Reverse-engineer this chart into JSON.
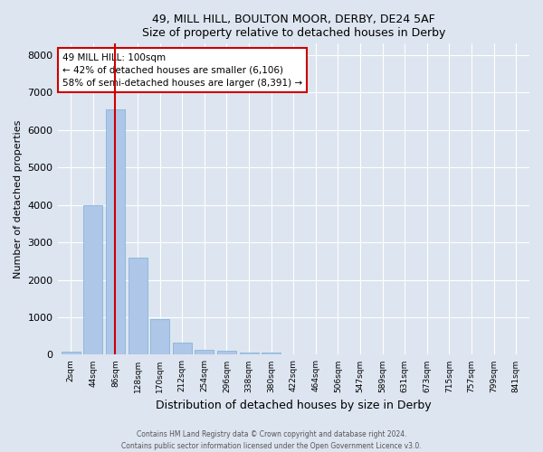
{
  "title1": "49, MILL HILL, BOULTON MOOR, DERBY, DE24 5AF",
  "title2": "Size of property relative to detached houses in Derby",
  "xlabel": "Distribution of detached houses by size in Derby",
  "ylabel": "Number of detached properties",
  "categories": [
    "2sqm",
    "44sqm",
    "86sqm",
    "128sqm",
    "170sqm",
    "212sqm",
    "254sqm",
    "296sqm",
    "338sqm",
    "380sqm",
    "422sqm",
    "464sqm",
    "506sqm",
    "547sqm",
    "589sqm",
    "631sqm",
    "673sqm",
    "715sqm",
    "757sqm",
    "799sqm",
    "841sqm"
  ],
  "values": [
    75,
    4000,
    6550,
    2600,
    950,
    320,
    135,
    110,
    70,
    70,
    0,
    0,
    0,
    0,
    0,
    0,
    0,
    0,
    0,
    0,
    0
  ],
  "bar_color": "#aec6e8",
  "bar_edge_color": "#7aadd4",
  "vline_x_index": 2,
  "vline_color": "#cc0000",
  "annotation_text": "49 MILL HILL: 100sqm\n← 42% of detached houses are smaller (6,106)\n58% of semi-detached houses are larger (8,391) →",
  "annotation_box_facecolor": "#ffffff",
  "annotation_box_edgecolor": "#cc0000",
  "ylim": [
    0,
    8300
  ],
  "yticks": [
    0,
    1000,
    2000,
    3000,
    4000,
    5000,
    6000,
    7000,
    8000
  ],
  "bg_color": "#dde5f0",
  "plot_bg_color": "#dde5f0",
  "grid_color": "#ffffff",
  "footer1": "Contains HM Land Registry data © Crown copyright and database right 2024.",
  "footer2": "Contains public sector information licensed under the Open Government Licence v3.0."
}
